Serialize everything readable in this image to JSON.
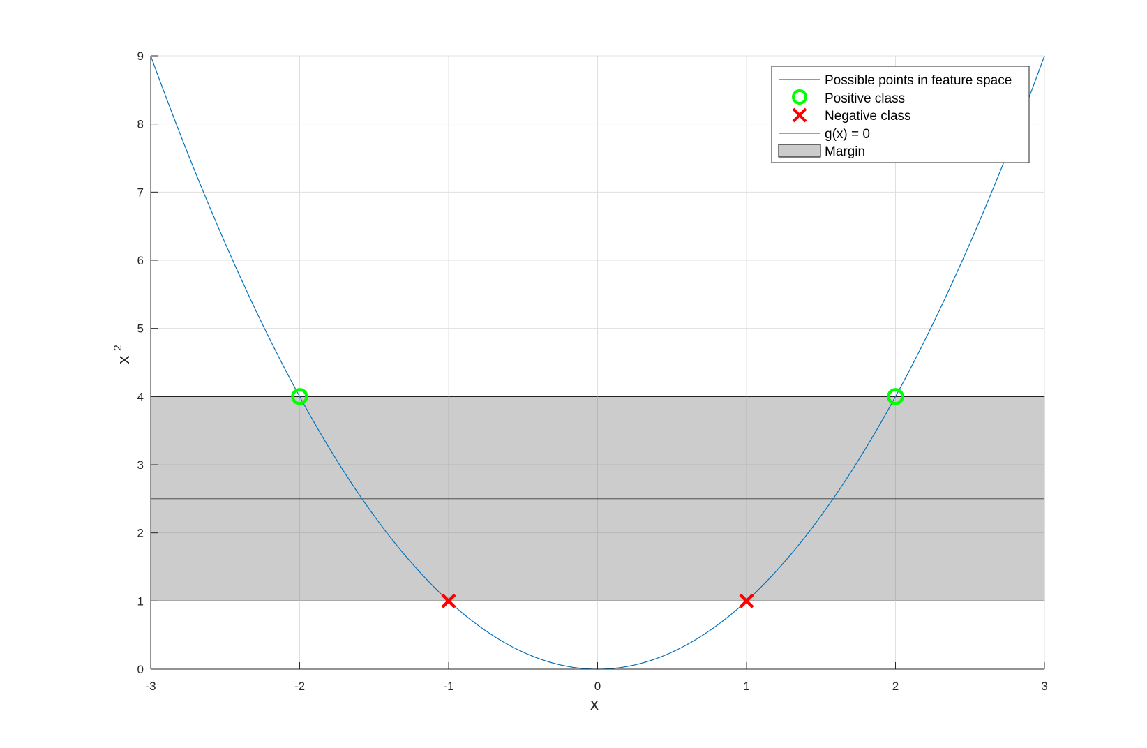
{
  "chart_data": {
    "type": "line",
    "xlabel": "x",
    "ylabel": "x",
    "ylabel_superscript": "2",
    "xlim": [
      -3,
      3
    ],
    "ylim": [
      0,
      9
    ],
    "x_ticks": [
      "-3",
      "-2",
      "-1",
      "0",
      "1",
      "2",
      "3"
    ],
    "y_ticks": [
      "0",
      "1",
      "2",
      "3",
      "4",
      "5",
      "6",
      "7",
      "8",
      "9"
    ],
    "grid": true,
    "legend_position": "top-right",
    "curve": {
      "name": "Possible points in feature space",
      "function": "x^2",
      "x_range": [
        -3,
        3
      ],
      "color": "#0072bd"
    },
    "positive_points": {
      "name": "Positive class",
      "marker": "circle",
      "color": "#00ff00",
      "points": [
        {
          "x": -2,
          "y": 4
        },
        {
          "x": 2,
          "y": 4
        }
      ]
    },
    "negative_points": {
      "name": "Negative class",
      "marker": "x",
      "color": "#ff0000",
      "points": [
        {
          "x": -1,
          "y": 1
        },
        {
          "x": 1,
          "y": 1
        }
      ]
    },
    "decision_boundary": {
      "name": "g(x) = 0",
      "y": 2.5,
      "color": "#000000"
    },
    "margin": {
      "name": "Margin",
      "y_range": [
        1,
        4
      ],
      "color": "#cccccc"
    }
  }
}
